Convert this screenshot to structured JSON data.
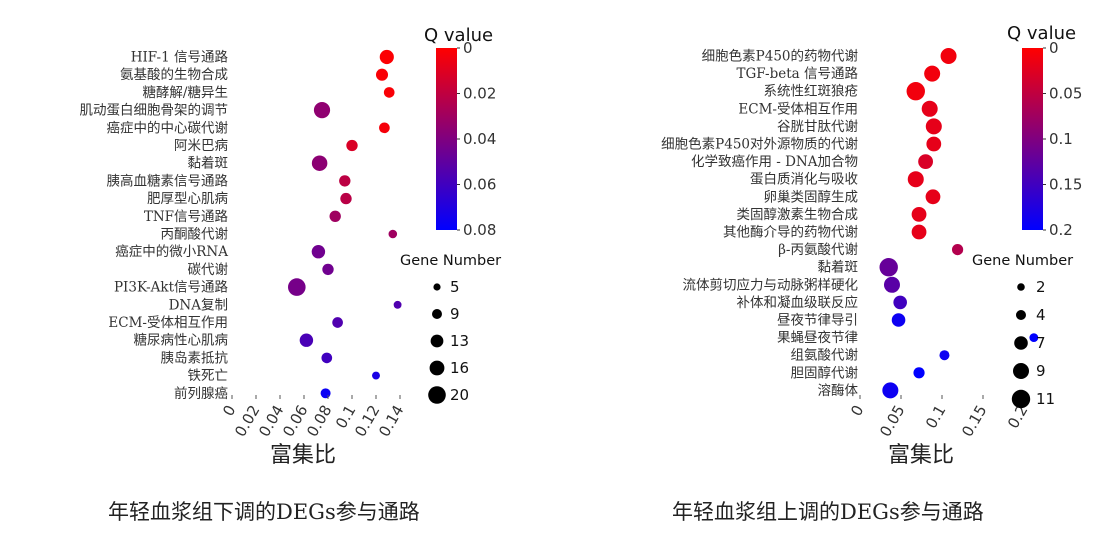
{
  "chart_data": [
    {
      "type": "scatter",
      "xlabel": "富集比",
      "xticks": [
        0,
        0.02,
        0.04,
        0.06,
        0.08,
        0.1,
        0.12,
        0.14
      ],
      "xlim": [
        0,
        0.14
      ],
      "caption": "年轻血浆组下调的DEGs参与通路",
      "color_legend": {
        "title": "Q value",
        "ticks": [
          "0",
          "0.02",
          "0.04",
          "0.06",
          "0.08"
        ],
        "range": [
          0,
          0.08
        ],
        "low_color": "#ff0000",
        "high_color": "#0000ff"
      },
      "size_legend": {
        "title": "Gene Number",
        "values": [
          5,
          9,
          13,
          16,
          20
        ]
      },
      "points": [
        {
          "label": "HIF-1 信号通路",
          "x": 0.129,
          "q": 0.001,
          "n": 15
        },
        {
          "label": "氨基酸的生物合成",
          "x": 0.125,
          "q": 0.002,
          "n": 12
        },
        {
          "label": "糖酵解/糖异生",
          "x": 0.131,
          "q": 0.002,
          "n": 10
        },
        {
          "label": "肌动蛋白细胞骨架的调节",
          "x": 0.075,
          "q": 0.035,
          "n": 18
        },
        {
          "label": "癌症中的中心碳代谢",
          "x": 0.127,
          "q": 0.003,
          "n": 10
        },
        {
          "label": "阿米巴病",
          "x": 0.1,
          "q": 0.012,
          "n": 11
        },
        {
          "label": "黏着斑",
          "x": 0.073,
          "q": 0.036,
          "n": 17
        },
        {
          "label": "胰高血糖素信号通路",
          "x": 0.094,
          "q": 0.021,
          "n": 11
        },
        {
          "label": "肥厚型心肌病",
          "x": 0.095,
          "q": 0.022,
          "n": 11
        },
        {
          "label": "TNF信号通路",
          "x": 0.086,
          "q": 0.03,
          "n": 11
        },
        {
          "label": "丙酮酸代谢",
          "x": 0.134,
          "q": 0.03,
          "n": 7
        },
        {
          "label": "癌症中的微小RNA",
          "x": 0.072,
          "q": 0.045,
          "n": 14
        },
        {
          "label": "碳代谢",
          "x": 0.08,
          "q": 0.045,
          "n": 11
        },
        {
          "label": "PI3K-Akt信号通路",
          "x": 0.054,
          "q": 0.043,
          "n": 20
        },
        {
          "label": "DNA复制",
          "x": 0.138,
          "q": 0.055,
          "n": 6
        },
        {
          "label": "ECM-受体相互作用",
          "x": 0.088,
          "q": 0.055,
          "n": 10
        },
        {
          "label": "糖尿病性心肌病",
          "x": 0.062,
          "q": 0.057,
          "n": 14
        },
        {
          "label": "胰岛素抵抗",
          "x": 0.079,
          "q": 0.06,
          "n": 10
        },
        {
          "label": "铁死亡",
          "x": 0.12,
          "q": 0.072,
          "n": 6
        },
        {
          "label": "前列腺癌",
          "x": 0.078,
          "q": 0.077,
          "n": 9
        }
      ]
    },
    {
      "type": "scatter",
      "xlabel": "富集比",
      "xticks": [
        0,
        0.05,
        0.1,
        0.15,
        0.2
      ],
      "xlim": [
        0,
        0.2
      ],
      "caption": "年轻血浆组上调的DEGs参与通路",
      "color_legend": {
        "title": "Q value",
        "ticks": [
          "0",
          "0.05",
          "0.1",
          "0.15",
          "0.2"
        ],
        "range": [
          0,
          0.2
        ],
        "low_color": "#ff0000",
        "high_color": "#0000ff"
      },
      "size_legend": {
        "title": "Gene Number",
        "values": [
          2,
          4,
          7,
          9,
          11
        ]
      },
      "points": [
        {
          "label": "细胞色素P450的药物代谢",
          "x": 0.108,
          "q": 0.01,
          "n": 9
        },
        {
          "label": "TGF-beta 信号通路",
          "x": 0.088,
          "q": 0.01,
          "n": 9
        },
        {
          "label": "系统性红斑狼疮",
          "x": 0.068,
          "q": 0.01,
          "n": 11
        },
        {
          "label": "ECM-受体相互作用",
          "x": 0.085,
          "q": 0.02,
          "n": 9
        },
        {
          "label": "谷胱甘肽代谢",
          "x": 0.09,
          "q": 0.02,
          "n": 9
        },
        {
          "label": "细胞色素P450对外源物质的代谢",
          "x": 0.09,
          "q": 0.02,
          "n": 8
        },
        {
          "label": "化学致癌作用 - DNA加合物",
          "x": 0.08,
          "q": 0.03,
          "n": 8
        },
        {
          "label": "蛋白质消化与吸收",
          "x": 0.068,
          "q": 0.02,
          "n": 9
        },
        {
          "label": "卵巢类固醇生成",
          "x": 0.089,
          "q": 0.02,
          "n": 8
        },
        {
          "label": "类固醇激素生物合成",
          "x": 0.072,
          "q": 0.02,
          "n": 8
        },
        {
          "label": "其他酶介导的药物代谢",
          "x": 0.072,
          "q": 0.02,
          "n": 8
        },
        {
          "label": "β-丙氨酸代谢",
          "x": 0.119,
          "q": 0.06,
          "n": 5
        },
        {
          "label": "黏着斑",
          "x": 0.035,
          "q": 0.12,
          "n": 11
        },
        {
          "label": "流体剪切应力与动脉粥样硬化",
          "x": 0.039,
          "q": 0.13,
          "n": 9
        },
        {
          "label": "补体和凝血级联反应",
          "x": 0.049,
          "q": 0.15,
          "n": 7
        },
        {
          "label": "昼夜节律导引",
          "x": 0.047,
          "q": 0.19,
          "n": 7
        },
        {
          "label": "果蝇昼夜节律",
          "x": 0.212,
          "q": 0.2,
          "n": 3
        },
        {
          "label": "组氨酸代谢",
          "x": 0.103,
          "q": 0.19,
          "n": 4
        },
        {
          "label": "胆固醇代谢",
          "x": 0.072,
          "q": 0.2,
          "n": 5
        },
        {
          "label": "溶酶体",
          "x": 0.037,
          "q": 0.19,
          "n": 9
        }
      ]
    }
  ]
}
